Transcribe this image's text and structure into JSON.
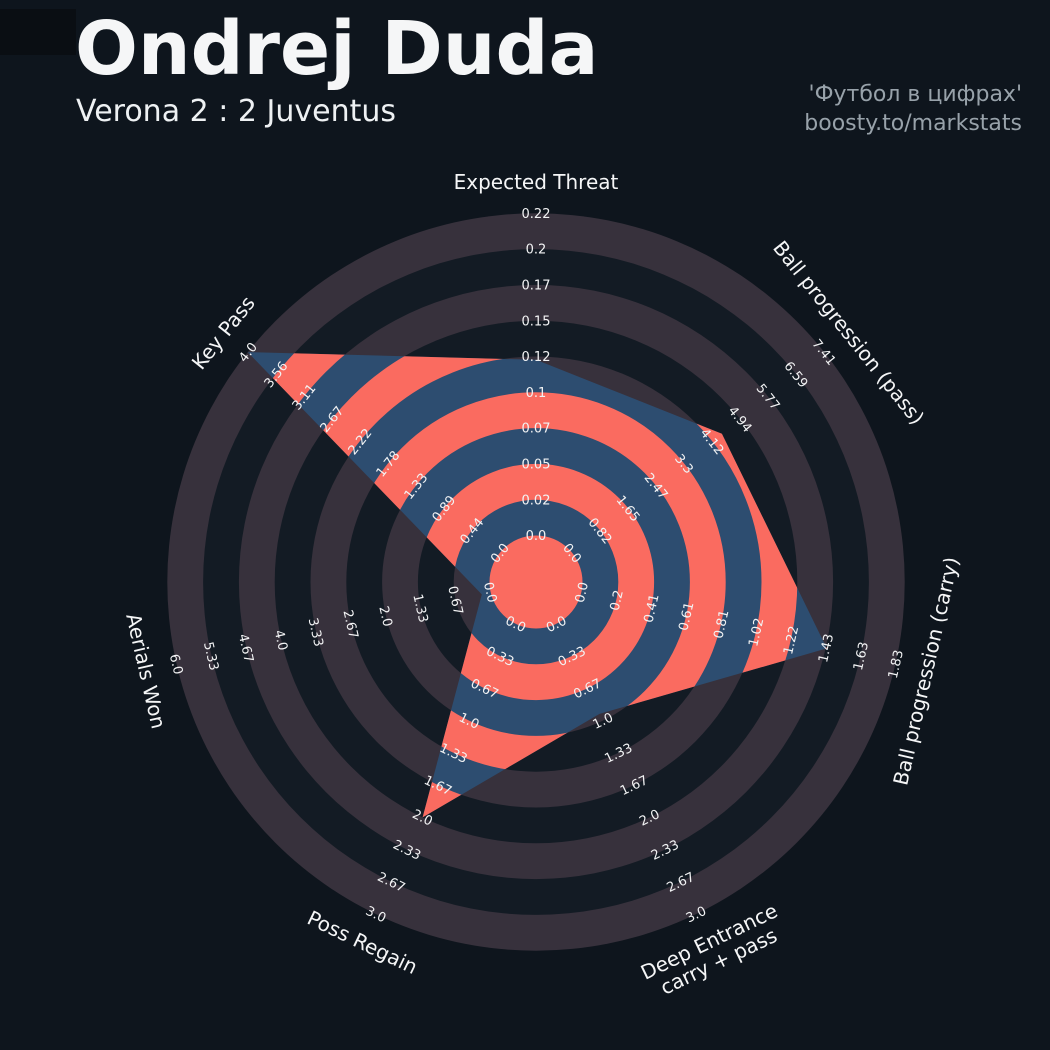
{
  "header": {
    "title": "Ondrej Duda",
    "subtitle": "Verona 2 : 2 Juventus"
  },
  "watermark": {
    "line1": "'Футбол в цифрах'",
    "line2": "boosty.to/markstats"
  },
  "chart_data": {
    "type": "radar",
    "title": "Ondrej Duda",
    "subtitle": "Verona 2 : 2 Juventus",
    "rings": 9,
    "legend_position": "none",
    "grid": "concentric-rings",
    "axes": [
      {
        "label": "Expected Threat",
        "angle_deg": 90,
        "max": 0.22,
        "value": 0.12,
        "ticks": [
          "0.0",
          "0.02",
          "0.05",
          "0.07",
          "0.1",
          "0.12",
          "0.15",
          "0.17",
          "0.2",
          "0.22"
        ]
      },
      {
        "label": "Ball progression (pass)",
        "angle_deg": 38.57,
        "max": 7.41,
        "value": 4.4,
        "ticks": [
          "0.0",
          "0.82",
          "1.65",
          "2.47",
          "3.3",
          "4.12",
          "4.94",
          "5.77",
          "6.59",
          "7.41"
        ]
      },
      {
        "label": "Ball progression (carry)",
        "angle_deg": -12.86,
        "max": 1.83,
        "value": 1.43,
        "ticks": [
          "0.0",
          "0.2",
          "0.41",
          "0.61",
          "0.81",
          "1.02",
          "1.22",
          "1.43",
          "1.63",
          "1.83"
        ]
      },
      {
        "label": "Deep Entrance\ncarry + pass",
        "angle_deg": -64.29,
        "max": 3.0,
        "value": 0.93,
        "ticks": [
          "0.0",
          "0.33",
          "0.67",
          "1.0",
          "1.33",
          "1.67",
          "2.0",
          "2.33",
          "2.67",
          "3.0"
        ]
      },
      {
        "label": "Poss Regain",
        "angle_deg": -115.71,
        "max": 3.0,
        "value": 2.0,
        "ticks": [
          "0.0",
          "0.33",
          "0.67",
          "1.0",
          "1.33",
          "1.67",
          "2.0",
          "2.33",
          "2.67",
          "3.0"
        ]
      },
      {
        "label": "Aerials Won",
        "angle_deg": -167.14,
        "max": 6.0,
        "value": 0.17,
        "ticks": [
          "0.0",
          "0.67",
          "1.33",
          "2.0",
          "2.67",
          "3.33",
          "4.0",
          "4.67",
          "5.33",
          "6.0"
        ]
      },
      {
        "label": "Key Pass",
        "angle_deg": 141.43,
        "max": 4.0,
        "value": 4.0,
        "ticks": [
          "0.0",
          "0.44",
          "0.89",
          "1.33",
          "1.78",
          "2.22",
          "2.67",
          "3.11",
          "3.56",
          "4.0"
        ]
      }
    ],
    "colors": {
      "background": "#0e151d",
      "ring_dark": "#131b24",
      "ring_light": "#37313c",
      "radar_fill_blue": "#2d4d70",
      "radar_rings_salmon": "#fa6b60",
      "tick_text": "#f2f3f4",
      "axis_label_text": "#f5f6f7"
    }
  }
}
